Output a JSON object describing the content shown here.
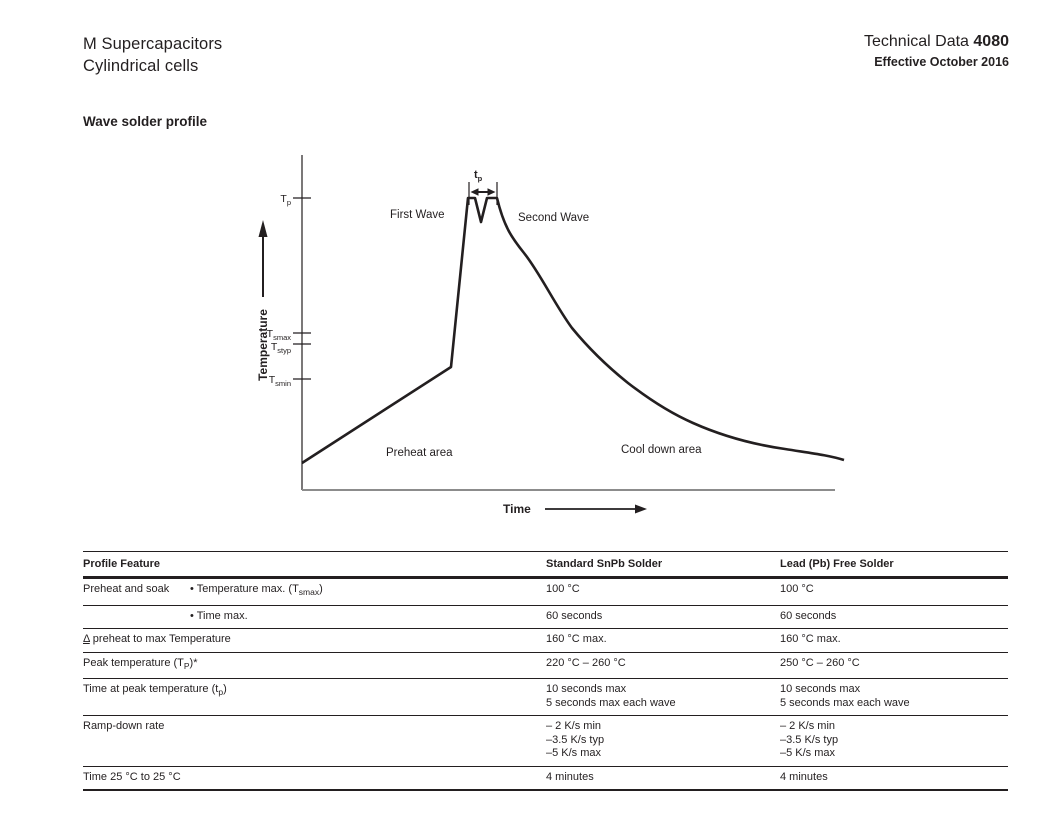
{
  "page": {
    "title_line1": "M Supercapacitors",
    "title_line2": "Cylindrical cells",
    "doc_type": "Technical Data",
    "doc_number": "4080",
    "effective": "Effective October 2016",
    "section_heading": "Wave solder profile"
  },
  "diagram": {
    "y_axis_label": "Temperature",
    "x_axis_label": "Time",
    "tick_tp": {
      "base": "T",
      "sub": "p"
    },
    "tick_tsmax": {
      "base": "T",
      "sub": "smax"
    },
    "tick_tstyp": {
      "base": "T",
      "sub": "styp"
    },
    "tick_tsmin": {
      "base": "T",
      "sub": "smin"
    },
    "tp_marker": {
      "base": "t",
      "sub": "p"
    },
    "label_first_wave": "First Wave",
    "label_second_wave": "Second Wave",
    "label_preheat": "Preheat area",
    "label_cooldown": "Cool down area"
  },
  "table": {
    "headers": [
      "Profile Feature",
      "Standard SnPb Solder",
      "Lead (Pb) Free Solder"
    ],
    "rows": [
      {
        "feature": [
          {
            "t": "Preheat and soak"
          }
        ],
        "bullet": [
          {
            "t": "• Temperature max. (T"
          },
          {
            "s": "smax"
          },
          {
            "t": ")"
          }
        ],
        "snpb": [
          "100 °C"
        ],
        "pbfree": [
          "100 °C"
        ]
      },
      {
        "feature": [],
        "bullet": [
          {
            "t": "• Time max."
          }
        ],
        "snpb": [
          "60 seconds"
        ],
        "pbfree": [
          "60 seconds"
        ]
      },
      {
        "feature": [
          {
            "u": "Δ"
          },
          {
            "t": " preheat to max Temperature"
          }
        ],
        "bullet": null,
        "snpb": [
          "160 °C max."
        ],
        "pbfree": [
          "160 °C max."
        ]
      },
      {
        "feature": [
          {
            "t": "Peak temperature (T"
          },
          {
            "s": "P"
          },
          {
            "t": ")*"
          }
        ],
        "bullet": null,
        "snpb": [
          "220 °C – 260 °C"
        ],
        "pbfree": [
          "250 °C – 260 °C"
        ]
      },
      {
        "feature": [
          {
            "t": "Time at peak temperature (t"
          },
          {
            "s": "p"
          },
          {
            "t": ")"
          }
        ],
        "bullet": null,
        "snpb": [
          "10 seconds max",
          "5 seconds max each wave"
        ],
        "pbfree": [
          "10 seconds max",
          "5 seconds max each wave"
        ]
      },
      {
        "feature": [
          {
            "t": "Ramp-down rate"
          }
        ],
        "bullet": null,
        "snpb": [
          "– 2 K/s min",
          "–3.5 K/s typ",
          "–5 K/s max"
        ],
        "pbfree": [
          "– 2 K/s min",
          "–3.5 K/s typ",
          "–5 K/s max"
        ]
      },
      {
        "feature": [
          {
            "t": "Time 25 °C to 25 °C"
          }
        ],
        "bullet": null,
        "snpb": [
          "4 minutes"
        ],
        "pbfree": [
          "4 minutes"
        ]
      }
    ]
  },
  "colors": {
    "ink": "#231f20",
    "axis_gray": "#8c8c8c"
  }
}
